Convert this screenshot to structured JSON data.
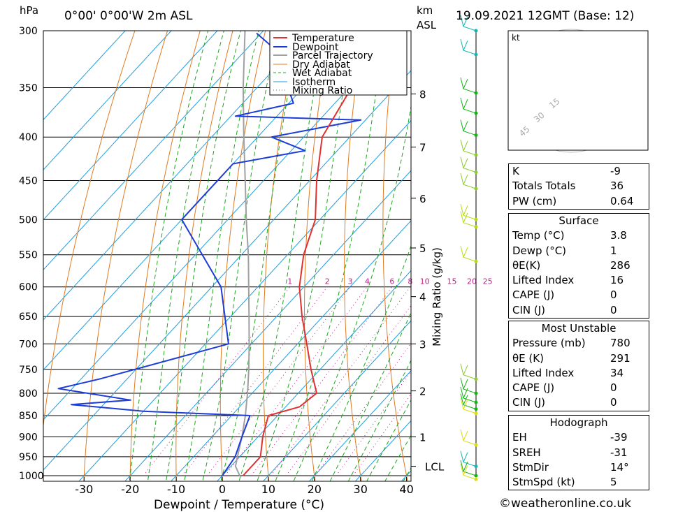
{
  "header": {
    "hpa_unit": "hPa",
    "location": "0°00' 0°00'W 2m ASL",
    "km_unit": "km",
    "asl": "ASL",
    "date": "19.09.2021 12GMT (Base: 12)"
  },
  "chart_data": {
    "type": "skew-t",
    "xlabel": "Dewpoint / Temperature (°C)",
    "ylabel_right": "Mixing Ratio (g/kg)",
    "x_ticks": [
      -30,
      -20,
      -10,
      0,
      10,
      20,
      30,
      40
    ],
    "x_tick_labels": [
      "-30",
      "-20",
      "-10",
      "0",
      "10",
      "20",
      "30",
      "40"
    ],
    "pressure_levels": [
      300,
      350,
      400,
      450,
      500,
      550,
      600,
      650,
      700,
      750,
      800,
      850,
      900,
      950,
      1000
    ],
    "pressure_labels": [
      "300",
      "350",
      "400",
      "450",
      "500",
      "550",
      "600",
      "650",
      "700",
      "750",
      "800",
      "850",
      "900",
      "950",
      "1000"
    ],
    "km_ticks": [
      {
        "km": 1,
        "p": 900
      },
      {
        "km": 2,
        "p": 795
      },
      {
        "km": 3,
        "p": 700
      },
      {
        "km": 4,
        "p": 616
      },
      {
        "km": 5,
        "p": 540
      },
      {
        "km": 6,
        "p": 472
      },
      {
        "km": 7,
        "p": 411
      },
      {
        "km": 8,
        "p": 356
      }
    ],
    "km_labels": [
      "1",
      "2",
      "3",
      "4",
      "5",
      "6",
      "7",
      "8"
    ],
    "lcl": {
      "label": "LCL",
      "p": 975
    },
    "mixing_ratio_labels": [
      "1",
      "2",
      "3",
      "4",
      "6",
      "8",
      "10",
      "15",
      "20",
      "25"
    ],
    "mixing_ratio_values": [
      1,
      2,
      3,
      4,
      6,
      8,
      10,
      15,
      20,
      25
    ],
    "legend": [
      "Temperature",
      "Dewpoint",
      "Parcel Trajectory",
      "Dry Adiabat",
      "Wet Adiabat",
      "Isotherm",
      "Mixing Ratio"
    ],
    "temperature": [
      [
        1000,
        4.5
      ],
      [
        950,
        4.5
      ],
      [
        900,
        1.0
      ],
      [
        850,
        -2.0
      ],
      [
        830,
        3.0
      ],
      [
        800,
        4.0
      ],
      [
        750,
        -2.0
      ],
      [
        700,
        -8.0
      ],
      [
        650,
        -14.5
      ],
      [
        600,
        -21.0
      ],
      [
        550,
        -26.5
      ],
      [
        500,
        -31.0
      ],
      [
        450,
        -38.5
      ],
      [
        400,
        -46.0
      ],
      [
        350,
        -49.5
      ],
      [
        320,
        -53.0
      ],
      [
        310,
        -56.0
      ],
      [
        300,
        -54.0
      ]
    ],
    "dewpoint": [
      [
        1000,
        0.0
      ],
      [
        950,
        -1.0
      ],
      [
        900,
        -3.5
      ],
      [
        850,
        -6.0
      ],
      [
        840,
        -30.0
      ],
      [
        825,
        -47.0
      ],
      [
        815,
        -35.0
      ],
      [
        790,
        -53.0
      ],
      [
        770,
        -46.0
      ],
      [
        700,
        -25.0
      ],
      [
        600,
        -38.0
      ],
      [
        500,
        -60.0
      ],
      [
        430,
        -60.0
      ],
      [
        415,
        -47.0
      ],
      [
        400,
        -57.0
      ],
      [
        382,
        -41.0
      ],
      [
        378,
        -69.0
      ],
      [
        365,
        -59.0
      ],
      [
        315,
        -74.0
      ],
      [
        302,
        -81.0
      ]
    ],
    "parcel": [
      [
        1000,
        3.8
      ],
      [
        975,
        1.0
      ],
      [
        950,
        -0.5
      ],
      [
        900,
        -3.5
      ],
      [
        850,
        -7.0
      ],
      [
        800,
        -11.0
      ],
      [
        750,
        -15.5
      ],
      [
        700,
        -20.5
      ],
      [
        650,
        -26.0
      ],
      [
        600,
        -32.0
      ],
      [
        550,
        -38.5
      ],
      [
        500,
        -46.0
      ],
      [
        450,
        -54.0
      ],
      [
        400,
        -63.0
      ],
      [
        350,
        -73.0
      ],
      [
        300,
        -84.0
      ]
    ]
  },
  "hodograph": {
    "unit": "kt",
    "ring_labels": [
      "15",
      "30",
      "45"
    ]
  },
  "stability_table": {
    "rows": [
      {
        "k": "K",
        "v": "-9"
      },
      {
        "k": "Totals Totals",
        "v": "36"
      },
      {
        "k": "PW (cm)",
        "v": "0.64"
      }
    ]
  },
  "surface_table": {
    "title": "Surface",
    "rows": [
      {
        "k": "Temp (°C)",
        "v": "3.8"
      },
      {
        "k": "Dewp (°C)",
        "v": "1"
      },
      {
        "k": "θE(K)",
        "v": "286"
      },
      {
        "k": "Lifted Index",
        "v": "16"
      },
      {
        "k": "CAPE (J)",
        "v": "0"
      },
      {
        "k": "CIN (J)",
        "v": "0"
      }
    ]
  },
  "unstable_table": {
    "title": "Most Unstable",
    "rows": [
      {
        "k": "Pressure (mb)",
        "v": "780"
      },
      {
        "k": "θE (K)",
        "v": "291"
      },
      {
        "k": "Lifted Index",
        "v": "34"
      },
      {
        "k": "CAPE (J)",
        "v": "0"
      },
      {
        "k": "CIN (J)",
        "v": "0"
      }
    ]
  },
  "hodo_table": {
    "title": "Hodograph",
    "rows": [
      {
        "k": "EH",
        "v": "-39"
      },
      {
        "k": "SREH",
        "v": "-31"
      },
      {
        "k": "StmDir",
        "v": "14°"
      },
      {
        "k": "StmSpd (kt)",
        "v": "5"
      }
    ]
  },
  "footer": "©weatheronline.co.uk",
  "colors": {
    "temperature": "#e03030",
    "dewpoint": "#1e3cd6",
    "parcel": "#a0a0a0",
    "dry_adiabat": "#e07a20",
    "wet_adiabat": "#1ca81c",
    "isotherm": "#1e9ee0",
    "mixing_ratio": "#c0208c"
  },
  "wind_profile": [
    {
      "p": 300,
      "color": "#14b4b4"
    },
    {
      "p": 320,
      "color": "#14b4b4"
    },
    {
      "p": 355,
      "color": "#14b414"
    },
    {
      "p": 375,
      "color": "#14b414"
    },
    {
      "p": 398,
      "color": "#14b414"
    },
    {
      "p": 420,
      "color": "#8ccc30"
    },
    {
      "p": 440,
      "color": "#8ccc30"
    },
    {
      "p": 460,
      "color": "#8ccc30"
    },
    {
      "p": 500,
      "color": "#b4dc14"
    },
    {
      "p": 510,
      "color": "#b4dc14"
    },
    {
      "p": 560,
      "color": "#b4dc14"
    },
    {
      "p": 770,
      "color": "#8ccc30"
    },
    {
      "p": 800,
      "color": "#14b414"
    },
    {
      "p": 820,
      "color": "#14b414"
    },
    {
      "p": 835,
      "color": "#14b414"
    },
    {
      "p": 845,
      "color": "#dcdc14"
    },
    {
      "p": 920,
      "color": "#dcdc14"
    },
    {
      "p": 975,
      "color": "#14b4b4"
    },
    {
      "p": 1000,
      "color": "#14b414"
    },
    {
      "p": 1010,
      "color": "#dcdc14"
    }
  ]
}
